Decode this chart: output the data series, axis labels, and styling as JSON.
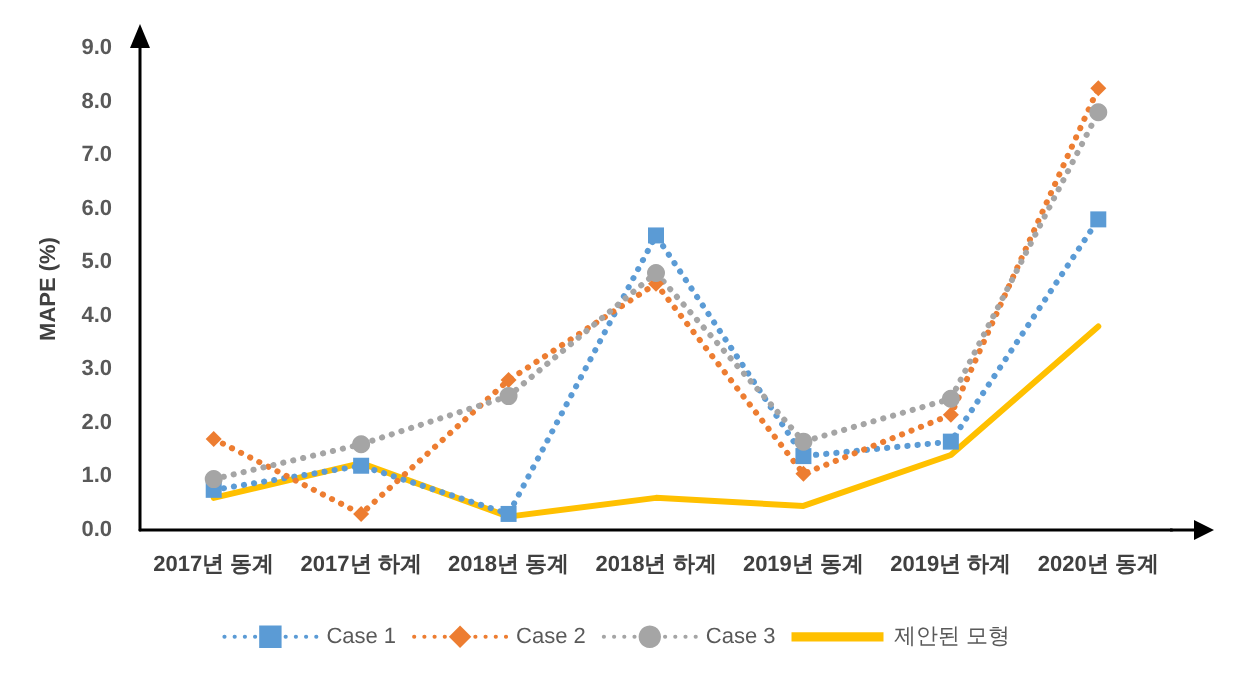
{
  "chart_data": {
    "type": "line",
    "ylabel": "MAPE (%)",
    "categories": [
      "2017년 동계",
      "2017년 하계",
      "2018년 동계",
      "2018년 하계",
      "2019년 동계",
      "2019년 하계",
      "2020년 동계"
    ],
    "series": [
      {
        "name": "Case 1",
        "color": "#5b9bd5",
        "marker": "square",
        "line_style": "dotted",
        "values": [
          0.75,
          1.2,
          0.3,
          5.5,
          1.38,
          1.65,
          5.8
        ]
      },
      {
        "name": "Case 2",
        "color": "#ed7d31",
        "marker": "diamond",
        "line_style": "dotted",
        "values": [
          1.7,
          0.3,
          2.8,
          4.6,
          1.05,
          2.15,
          8.25
        ]
      },
      {
        "name": "Case 3",
        "color": "#a5a5a5",
        "marker": "circle",
        "line_style": "dotted",
        "values": [
          0.95,
          1.6,
          2.5,
          4.8,
          1.65,
          2.45,
          7.8
        ]
      },
      {
        "name": "제안된 모형",
        "color": "#ffc000",
        "marker": "none",
        "line_style": "solid",
        "values": [
          0.6,
          1.25,
          0.25,
          0.6,
          0.45,
          1.4,
          3.8
        ]
      }
    ],
    "ylim": [
      0,
      9
    ],
    "yticks": [
      {
        "value": 0,
        "label": "0.0"
      },
      {
        "value": 1,
        "label": "1.0"
      },
      {
        "value": 2,
        "label": "2.0"
      },
      {
        "value": 3,
        "label": "3.0"
      },
      {
        "value": 4,
        "label": "4.0"
      },
      {
        "value": 5,
        "label": "5.0"
      },
      {
        "value": 6,
        "label": "6.0"
      },
      {
        "value": 7,
        "label": "7.0"
      },
      {
        "value": 8,
        "label": "8.0"
      },
      {
        "value": 9,
        "label": "9.0"
      }
    ],
    "grid": false,
    "legend": "bottom"
  }
}
